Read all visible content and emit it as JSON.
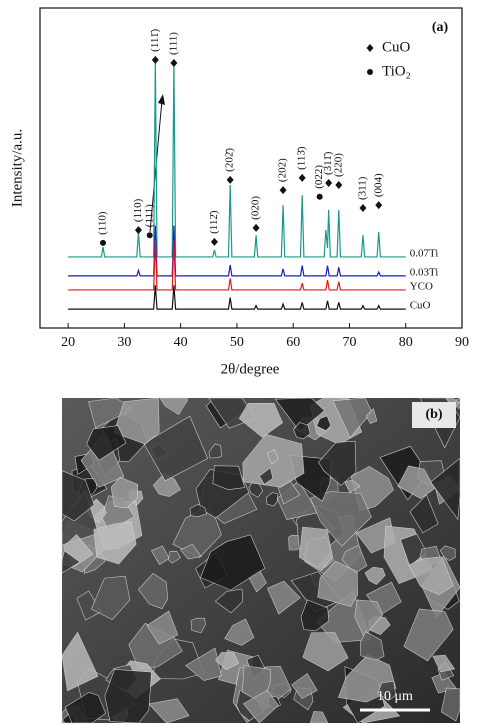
{
  "chart_data": {
    "type": "line",
    "panel_label": "(a)",
    "x_label": "2θ/degree",
    "y_label": "Intensity/a.u.",
    "xlim": [
      15,
      90
    ],
    "xticks": [
      20,
      30,
      40,
      50,
      60,
      70,
      80,
      90
    ],
    "ylim": [
      0,
      100
    ],
    "legend": [
      {
        "label": "CuO",
        "marker": "diamond"
      },
      {
        "label": "TiO₂",
        "marker": "circle"
      }
    ],
    "series": [
      {
        "name": "0.07Ti",
        "color": "#1a9a8a",
        "x": [
          20,
          25.9,
          26.2,
          26.5,
          32.2,
          32.5,
          32.8,
          35.2,
          35.5,
          35.8,
          38.5,
          38.8,
          39.1,
          45.7,
          46,
          46.3,
          48.5,
          48.8,
          49.1,
          53.1,
          53.4,
          53.7,
          57.9,
          58.2,
          58.5,
          61.3,
          61.6,
          61.9,
          65.5,
          65.8,
          66.1,
          66.3,
          66.6,
          67.8,
          68.1,
          68.4,
          72.1,
          72.4,
          72.7,
          74.9,
          75.2,
          75.5,
          80
        ],
        "values": [
          22.2,
          22.2,
          25.3,
          22.2,
          22.2,
          30,
          22.2,
          22.2,
          84.4,
          22.2,
          22.2,
          83,
          22.2,
          22.2,
          24.4,
          22.2,
          22.2,
          44.7,
          22.2,
          22.2,
          29,
          22.2,
          22.2,
          38.4,
          22.2,
          22.2,
          41.5,
          22.2,
          22.2,
          30.6,
          25,
          36.9,
          22.2,
          22.2,
          36.9,
          22.2,
          22.2,
          29,
          22.2,
          22.2,
          30,
          22.2,
          22.2
        ]
      },
      {
        "name": "0.03Ti",
        "color": "#1a1ad0",
        "x": [
          20,
          32.2,
          32.5,
          32.8,
          35.2,
          35.5,
          35.8,
          38.5,
          38.8,
          39.1,
          48.5,
          48.8,
          49.1,
          57.9,
          58.2,
          58.5,
          61.3,
          61.6,
          61.9,
          65.8,
          66.1,
          66.4,
          67.8,
          68.1,
          68.4,
          74.9,
          75.2,
          75.5,
          80
        ],
        "values": [
          16.3,
          16.3,
          18,
          16.3,
          16.3,
          32,
          16.3,
          16.3,
          32,
          16.3,
          16.3,
          19.7,
          16.3,
          16.3,
          18.5,
          16.3,
          16.3,
          19.5,
          16.3,
          16.3,
          19.5,
          16.3,
          16.3,
          19,
          16.3,
          16.3,
          17.5,
          16.3,
          16.3
        ]
      },
      {
        "name": "YCO",
        "color": "#e01818",
        "x": [
          20,
          35.2,
          35.5,
          35.8,
          38.5,
          38.8,
          39.1,
          48.5,
          48.8,
          49.1,
          61.3,
          61.6,
          61.9,
          65.8,
          66.1,
          66.4,
          67.8,
          68.1,
          68.4,
          80
        ],
        "values": [
          11.9,
          11.9,
          27.5,
          11.9,
          11.9,
          27.5,
          11.9,
          11.9,
          15.5,
          11.9,
          11.9,
          14,
          11.9,
          11.9,
          15,
          11.9,
          11.9,
          14.5,
          11.9,
          11.9
        ]
      },
      {
        "name": "CuO",
        "color": "#111111",
        "x": [
          20,
          35.2,
          35.5,
          35.8,
          38.5,
          38.8,
          39.1,
          48.5,
          48.8,
          49.1,
          53.1,
          53.4,
          53.7,
          57.9,
          58.2,
          58.5,
          61.3,
          61.6,
          61.9,
          65.8,
          66.1,
          66.4,
          67.8,
          68.1,
          68.4,
          72.1,
          72.4,
          72.7,
          74.9,
          75.2,
          75.5,
          80
        ],
        "values": [
          5.9,
          5.9,
          13.4,
          5.9,
          5.9,
          13.4,
          5.9,
          5.9,
          9.5,
          5.9,
          5.9,
          7,
          5.9,
          5.9,
          7.5,
          5.9,
          5.9,
          8,
          5.9,
          5.9,
          8.5,
          5.9,
          5.9,
          8,
          5.9,
          5.9,
          7,
          5.9,
          5.9,
          7,
          5.9,
          5.9
        ]
      }
    ],
    "annotations": [
      {
        "text": "(110)",
        "x": 26.2,
        "y": 26.6,
        "marker": "circle"
      },
      {
        "text": "(110)",
        "x": 32.5,
        "y": 30.6,
        "marker": "diamond"
      },
      {
        "text": "(111)",
        "x": 34.5,
        "y": 29,
        "marker": "circle"
      },
      {
        "text": "(111̄)",
        "x": 35.5,
        "y": 83.8,
        "marker": "diamond"
      },
      {
        "text": "(111)",
        "x": 38.8,
        "y": 82.8,
        "marker": "diamond"
      },
      {
        "text": "(112̄)",
        "x": 46,
        "y": 26.9,
        "marker": "diamond"
      },
      {
        "text": "(202̄)",
        "x": 48.8,
        "y": 46.3,
        "marker": "diamond"
      },
      {
        "text": "(020)",
        "x": 53.4,
        "y": 31.3,
        "marker": "diamond"
      },
      {
        "text": "(202)",
        "x": 58.2,
        "y": 43.1,
        "marker": "diamond"
      },
      {
        "text": "(113̄)",
        "x": 61.6,
        "y": 46.9,
        "marker": "diamond"
      },
      {
        "text": "(022)",
        "x": 64.7,
        "y": 41,
        "marker": "circle"
      },
      {
        "text": "(311̄)",
        "x": 66.3,
        "y": 45.3,
        "marker": "diamond"
      },
      {
        "text": "(220)",
        "x": 68.1,
        "y": 44.7,
        "marker": "diamond"
      },
      {
        "text": "(311)",
        "x": 72.4,
        "y": 37.5,
        "marker": "diamond"
      },
      {
        "text": "(004)",
        "x": 75.2,
        "y": 38.4,
        "marker": "diamond"
      }
    ]
  },
  "image_panel": {
    "label": "(b)",
    "scale_bar": "10 μm"
  }
}
